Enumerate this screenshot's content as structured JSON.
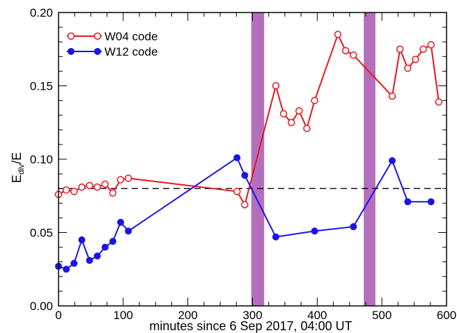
{
  "chart_data": {
    "type": "line",
    "xlabel": "minutes since 6 Sep 2017, 04:00 UT",
    "ylabel_main": "E",
    "ylabel_sub": "div",
    "ylabel_tail": "/E",
    "xlim": [
      0,
      600
    ],
    "ylim": [
      0.0,
      0.2
    ],
    "xticks": [
      0,
      100,
      200,
      300,
      400,
      500,
      600
    ],
    "xtick_labels": [
      "0",
      "100",
      "200",
      "300",
      "400",
      "500",
      "600"
    ],
    "yticks": [
      0.0,
      0.05,
      0.1,
      0.15,
      0.2
    ],
    "ytick_labels": [
      "0.00",
      "0.05",
      "0.10",
      "0.15",
      "0.20"
    ],
    "grid": false,
    "legend_position": "top-left",
    "reference_line": {
      "y": 0.08,
      "style": "dashed",
      "color": "#000000"
    },
    "shaded_regions": [
      {
        "x0": 298,
        "x1": 318,
        "color": "#9b3fa6"
      },
      {
        "x0": 472,
        "x1": 490,
        "color": "#9b3fa6"
      }
    ],
    "series": [
      {
        "name": "W04 code",
        "color": "#e8141e",
        "marker": "open-circle",
        "x": [
          0,
          12,
          24,
          36,
          48,
          60,
          72,
          84,
          96,
          108,
          276,
          288,
          336,
          348,
          360,
          372,
          384,
          396,
          432,
          444,
          456,
          516,
          528,
          540,
          552,
          564,
          576,
          588
        ],
        "y": [
          0.076,
          0.079,
          0.078,
          0.081,
          0.082,
          0.081,
          0.083,
          0.077,
          0.086,
          0.087,
          0.078,
          0.069,
          0.15,
          0.131,
          0.125,
          0.133,
          0.121,
          0.14,
          0.185,
          0.174,
          0.171,
          0.143,
          0.175,
          0.162,
          0.168,
          0.175,
          0.178,
          0.139
        ]
      },
      {
        "name": "W12 code",
        "color": "#1a14e8",
        "marker": "filled-circle",
        "x": [
          0,
          12,
          24,
          36,
          48,
          60,
          72,
          84,
          96,
          108,
          276,
          288,
          336,
          396,
          456,
          516,
          540,
          576
        ],
        "y": [
          0.027,
          0.025,
          0.029,
          0.045,
          0.031,
          0.034,
          0.04,
          0.044,
          0.057,
          0.051,
          0.101,
          0.089,
          0.047,
          0.051,
          0.054,
          0.099,
          0.071,
          0.071
        ]
      }
    ]
  }
}
